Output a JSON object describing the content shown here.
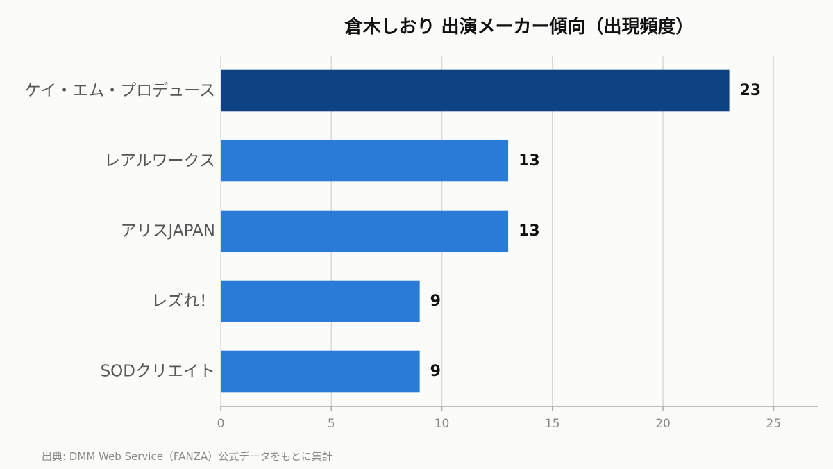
{
  "title": "倉木しおり 出演メーカー傾向（出現頻度）",
  "source": "出典: DMM Web Service（FANZA）公式データをもとに集計",
  "colors": {
    "highlight": "#0f4283",
    "bar": "#2a7bd7",
    "grid": "#d9d9d9",
    "axis": "#aaaaaa"
  },
  "chart_data": {
    "type": "bar",
    "orientation": "horizontal",
    "title": "倉木しおり 出演メーカー傾向（出現頻度）",
    "categories": [
      "ケイ・エム・プロデュース",
      "レアルワークス",
      "アリスJAPAN",
      "レズれ！",
      "SODクリエイト"
    ],
    "values": [
      23,
      13,
      13,
      9,
      9
    ],
    "xlim": [
      0,
      27
    ],
    "xticks": [
      0,
      5,
      10,
      15,
      20,
      25
    ],
    "grid": "vertical",
    "highlight_index": 0
  }
}
